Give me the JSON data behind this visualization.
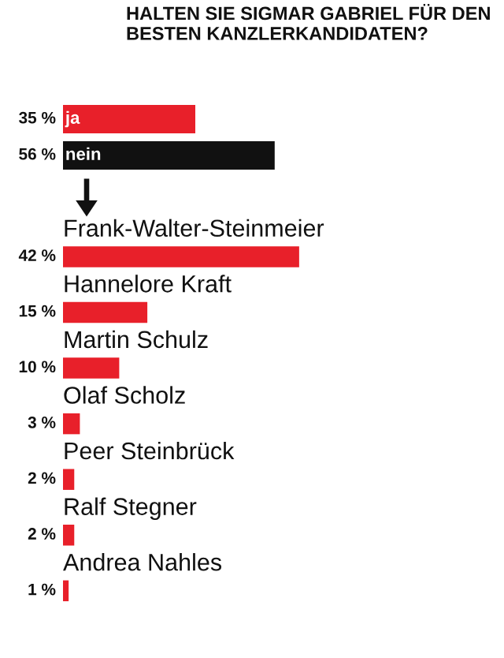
{
  "chart_data": [
    {
      "type": "bar",
      "orientation": "horizontal",
      "title": "HALTEN SIE SIGMAR GABRIEL FÜR DEN BESTEN KANZLERKANDIDATEN?",
      "categories": [
        "ja",
        "nein"
      ],
      "values": [
        35,
        56
      ],
      "colors": [
        "#e8202a",
        "#111111"
      ],
      "value_labels": [
        "35 %",
        "56 %"
      ]
    },
    {
      "type": "bar",
      "orientation": "horizontal",
      "categories": [
        "Frank-Walter-Steinmeier",
        "Hannelore Kraft",
        "Martin Schulz",
        "Olaf Scholz",
        "Peer Steinbrück",
        "Ralf Stegner",
        "Andrea Nahles"
      ],
      "values": [
        42,
        15,
        10,
        3,
        2,
        2,
        1
      ],
      "color": "#e8202a",
      "value_labels": [
        "42 %",
        "15 %",
        "10 %",
        "3 %",
        "2 %",
        "2 %",
        "1 %"
      ]
    }
  ]
}
